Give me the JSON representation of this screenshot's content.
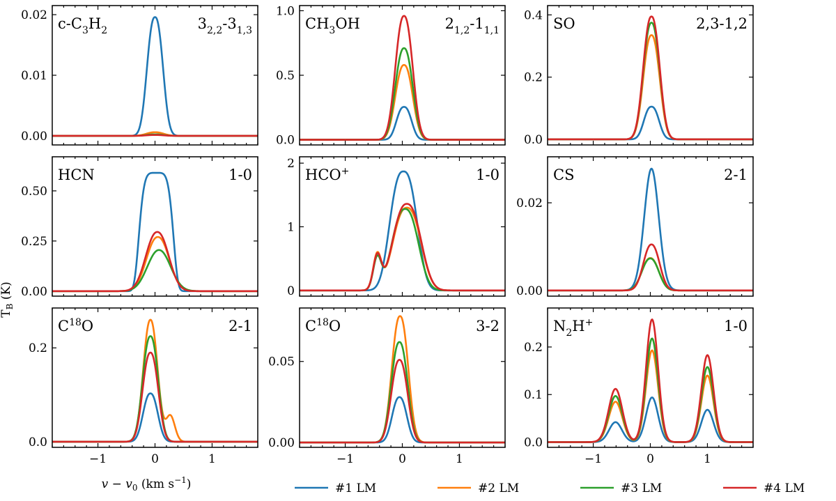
{
  "figure": {
    "ylabel": "T",
    "ylabel_sub": "B",
    "ylabel_unit": " (K)",
    "xlabel_var": "v − v",
    "xlabel_sub": "0",
    "xlabel_unit": " (km s",
    "xlabel_exp": "−1",
    "xlabel_close": ")"
  },
  "legend": [
    {
      "label": "#1 LM",
      "color": "#1f77b4"
    },
    {
      "label": "#2 LM",
      "color": "#ff7f0e"
    },
    {
      "label": "#3 LM",
      "color": "#2ca02c"
    },
    {
      "label": "#4 LM",
      "color": "#d62728"
    }
  ],
  "chart_data": [
    {
      "type": "line",
      "molecule": [
        {
          "t": "c-C"
        },
        {
          "t": "3",
          "s": "sub"
        },
        {
          "t": "H"
        },
        {
          "t": "2",
          "s": "sub"
        }
      ],
      "transition": [
        {
          "t": "3"
        },
        {
          "t": "2,2",
          "s": "sub"
        },
        {
          "t": "-3"
        },
        {
          "t": "1,3",
          "s": "sub"
        }
      ],
      "xlim": [
        -1.8,
        1.8
      ],
      "ylim": [
        -0.0015,
        0.0215
      ],
      "xticks": [
        -1,
        0,
        1
      ],
      "xtick_labels": [
        "−1",
        "0",
        "1"
      ],
      "yticks": [
        0,
        0.01,
        0.02
      ],
      "ytick_labels": [
        "0.00",
        "0.01",
        "0.02"
      ],
      "series": [
        {
          "name": "#1 LM",
          "components": [
            {
              "a": 0.0196,
              "mu": 0.0,
              "sigma": 0.18,
              "p": 2.4
            }
          ]
        },
        {
          "name": "#2 LM",
          "components": [
            {
              "a": 0.0006,
              "mu": 0.0,
              "sigma": 0.2,
              "p": 2.2
            }
          ]
        },
        {
          "name": "#3 LM",
          "components": [
            {
              "a": 0.00025,
              "mu": 0.0,
              "sigma": 0.2,
              "p": 2.2
            }
          ]
        },
        {
          "name": "#4 LM",
          "components": [
            {
              "a": 0.00015,
              "mu": 0.0,
              "sigma": 0.2,
              "p": 2.2
            }
          ]
        }
      ]
    },
    {
      "type": "line",
      "molecule": [
        {
          "t": "CH"
        },
        {
          "t": "3",
          "s": "sub"
        },
        {
          "t": "OH"
        }
      ],
      "transition": [
        {
          "t": "2"
        },
        {
          "t": "1,2",
          "s": "sub"
        },
        {
          "t": "-1"
        },
        {
          "t": "1,1",
          "s": "sub"
        }
      ],
      "xlim": [
        -1.8,
        1.8
      ],
      "ylim": [
        -0.04,
        1.04
      ],
      "xticks": [
        -1,
        0,
        1
      ],
      "xtick_labels": [
        "−1",
        "0",
        "1"
      ],
      "yticks": [
        0,
        0.5,
        1.0
      ],
      "ytick_labels": [
        "0.0",
        "0.5",
        "1.0"
      ],
      "series": [
        {
          "name": "#1 LM",
          "components": [
            {
              "a": 0.255,
              "mu": 0.03,
              "sigma": 0.17,
              "p": 2.4
            }
          ]
        },
        {
          "name": "#2 LM",
          "components": [
            {
              "a": 0.58,
              "mu": 0.03,
              "sigma": 0.2,
              "p": 2.3
            }
          ]
        },
        {
          "name": "#3 LM",
          "components": [
            {
              "a": 0.71,
              "mu": 0.03,
              "sigma": 0.2,
              "p": 2.3
            }
          ]
        },
        {
          "name": "#4 LM",
          "components": [
            {
              "a": 0.96,
              "mu": 0.03,
              "sigma": 0.2,
              "p": 2.3
            }
          ]
        }
      ]
    },
    {
      "type": "line",
      "molecule": [
        {
          "t": "SO"
        }
      ],
      "transition": [
        {
          "t": "2,3-1,2"
        }
      ],
      "xlim": [
        -1.8,
        1.8
      ],
      "ylim": [
        -0.018,
        0.43
      ],
      "xticks": [
        -1,
        0,
        1
      ],
      "xtick_labels": [
        "−1",
        "0",
        "1"
      ],
      "yticks": [
        0,
        0.2,
        0.4
      ],
      "ytick_labels": [
        "0.0",
        "0.2",
        "0.4"
      ],
      "series": [
        {
          "name": "#1 LM",
          "components": [
            {
              "a": 0.105,
              "mu": 0.02,
              "sigma": 0.17,
              "p": 2.4
            }
          ]
        },
        {
          "name": "#2 LM",
          "components": [
            {
              "a": 0.335,
              "mu": 0.02,
              "sigma": 0.19,
              "p": 2.3
            }
          ]
        },
        {
          "name": "#3 LM",
          "components": [
            {
              "a": 0.375,
              "mu": 0.02,
              "sigma": 0.19,
              "p": 2.3
            }
          ]
        },
        {
          "name": "#4 LM",
          "components": [
            {
              "a": 0.395,
              "mu": 0.02,
              "sigma": 0.19,
              "p": 2.3
            }
          ]
        }
      ]
    },
    {
      "type": "line",
      "molecule": [
        {
          "t": "HCN"
        }
      ],
      "transition": [
        {
          "t": "1-0"
        }
      ],
      "xlim": [
        -1.8,
        1.8
      ],
      "ylim": [
        -0.025,
        0.67
      ],
      "xticks": [
        -1,
        0,
        1
      ],
      "xtick_labels": [
        "−1",
        "0",
        "1"
      ],
      "yticks": [
        0,
        0.25,
        0.5
      ],
      "ytick_labels": [
        "0.00",
        "0.25",
        "0.50"
      ],
      "series": [
        {
          "name": "#1 LM",
          "components": [
            {
              "a": 0.59,
              "mu": 0.02,
              "sigma": 0.32,
              "p": 5.0
            }
          ]
        },
        {
          "name": "#2 LM",
          "components": [
            {
              "a": 0.27,
              "mu": 0.05,
              "sigma": 0.27,
              "p": 2.2
            }
          ]
        },
        {
          "name": "#3 LM",
          "components": [
            {
              "a": 0.205,
              "mu": 0.07,
              "sigma": 0.28,
              "p": 2.1
            }
          ]
        },
        {
          "name": "#4 LM",
          "components": [
            {
              "a": 0.295,
              "mu": 0.04,
              "sigma": 0.27,
              "p": 2.2
            }
          ]
        }
      ]
    },
    {
      "type": "line",
      "molecule": [
        {
          "t": "HCO"
        },
        {
          "t": "+",
          "s": "sup"
        }
      ],
      "transition": [
        {
          "t": "1-0"
        }
      ],
      "xlim": [
        -1.8,
        1.8
      ],
      "ylim": [
        -0.09,
        2.1
      ],
      "xticks": [
        -1,
        0,
        1
      ],
      "xtick_labels": [
        "−1",
        "0",
        "1"
      ],
      "yticks": [
        0,
        1,
        2
      ],
      "ytick_labels": [
        "0",
        "1",
        "2"
      ],
      "series": [
        {
          "name": "#1 LM",
          "components": [
            {
              "a": 1.87,
              "mu": 0.02,
              "sigma": 0.3,
              "p": 2.6
            }
          ]
        },
        {
          "name": "#2 LM",
          "components": [
            {
              "a": 0.55,
              "mu": -0.44,
              "sigma": 0.1,
              "p": 2.0
            },
            {
              "a": 1.3,
              "mu": 0.08,
              "sigma": 0.32,
              "p": 2.4
            }
          ]
        },
        {
          "name": "#3 LM",
          "components": [
            {
              "a": 0.5,
              "mu": -0.44,
              "sigma": 0.1,
              "p": 2.0
            },
            {
              "a": 1.28,
              "mu": 0.05,
              "sigma": 0.3,
              "p": 2.4
            }
          ]
        },
        {
          "name": "#4 LM",
          "components": [
            {
              "a": 0.53,
              "mu": -0.44,
              "sigma": 0.1,
              "p": 2.0
            },
            {
              "a": 1.36,
              "mu": 0.08,
              "sigma": 0.32,
              "p": 2.4
            }
          ]
        }
      ]
    },
    {
      "type": "line",
      "molecule": [
        {
          "t": "CS"
        }
      ],
      "transition": [
        {
          "t": "2-1"
        }
      ],
      "xlim": [
        -1.8,
        1.8
      ],
      "ylim": [
        -0.0013,
        0.0305
      ],
      "xticks": [
        -1,
        0,
        1
      ],
      "xtick_labels": [
        "−1",
        "0",
        "1"
      ],
      "yticks": [
        0,
        0.02
      ],
      "ytick_labels": [
        "0.00",
        "0.02"
      ],
      "series": [
        {
          "name": "#1 LM",
          "components": [
            {
              "a": 0.0278,
              "mu": 0.02,
              "sigma": 0.18,
              "p": 2.0
            }
          ]
        },
        {
          "name": "#2 LM",
          "components": [
            {
              "a": 0.0074,
              "mu": 0.0,
              "sigma": 0.2,
              "p": 2.2
            }
          ]
        },
        {
          "name": "#3 LM",
          "components": [
            {
              "a": 0.0073,
              "mu": 0.0,
              "sigma": 0.2,
              "p": 2.2
            }
          ]
        },
        {
          "name": "#4 LM",
          "components": [
            {
              "a": 0.0105,
              "mu": 0.02,
              "sigma": 0.19,
              "p": 2.2
            }
          ]
        }
      ]
    },
    {
      "type": "line",
      "molecule": [
        {
          "t": "C"
        },
        {
          "t": "18",
          "s": "sup"
        },
        {
          "t": "O"
        }
      ],
      "transition": [
        {
          "t": "2-1"
        }
      ],
      "xlim": [
        -1.8,
        1.8
      ],
      "ylim": [
        -0.012,
        0.285
      ],
      "xticks": [
        -1,
        0,
        1
      ],
      "xtick_labels": [
        "−1",
        "0",
        "1"
      ],
      "yticks": [
        0,
        0.2
      ],
      "ytick_labels": [
        "0.0",
        "0.2"
      ],
      "series": [
        {
          "name": "#1 LM",
          "components": [
            {
              "a": 0.103,
              "mu": -0.08,
              "sigma": 0.17,
              "p": 2.3
            }
          ]
        },
        {
          "name": "#2 LM",
          "components": [
            {
              "a": 0.26,
              "mu": -0.08,
              "sigma": 0.17,
              "p": 2.2
            },
            {
              "a": 0.055,
              "mu": 0.27,
              "sigma": 0.11,
              "p": 2.0
            }
          ]
        },
        {
          "name": "#3 LM",
          "components": [
            {
              "a": 0.225,
              "mu": -0.08,
              "sigma": 0.18,
              "p": 2.3
            }
          ]
        },
        {
          "name": "#4 LM",
          "components": [
            {
              "a": 0.19,
              "mu": -0.08,
              "sigma": 0.18,
              "p": 2.3
            }
          ]
        }
      ]
    },
    {
      "type": "line",
      "molecule": [
        {
          "t": "C"
        },
        {
          "t": "18",
          "s": "sup"
        },
        {
          "t": "O"
        }
      ],
      "transition": [
        {
          "t": "3-2"
        }
      ],
      "xlim": [
        -1.8,
        1.8
      ],
      "ylim": [
        -0.003,
        0.083
      ],
      "xticks": [
        -1,
        0,
        1
      ],
      "xtick_labels": [
        "−1",
        "0",
        "1"
      ],
      "yticks": [
        0,
        0.05
      ],
      "ytick_labels": [
        "0.00",
        "0.05"
      ],
      "series": [
        {
          "name": "#1 LM",
          "components": [
            {
              "a": 0.028,
              "mu": -0.05,
              "sigma": 0.17,
              "p": 2.3
            }
          ]
        },
        {
          "name": "#2 LM",
          "components": [
            {
              "a": 0.078,
              "mu": -0.04,
              "sigma": 0.19,
              "p": 2.3
            }
          ]
        },
        {
          "name": "#3 LM",
          "components": [
            {
              "a": 0.062,
              "mu": -0.05,
              "sigma": 0.19,
              "p": 2.3
            }
          ]
        },
        {
          "name": "#4 LM",
          "components": [
            {
              "a": 0.051,
              "mu": -0.05,
              "sigma": 0.19,
              "p": 2.3
            }
          ]
        }
      ]
    },
    {
      "type": "line",
      "molecule": [
        {
          "t": "N"
        },
        {
          "t": "2",
          "s": "sub"
        },
        {
          "t": "H"
        },
        {
          "t": "+",
          "s": "sup"
        }
      ],
      "transition": [
        {
          "t": "1-0"
        }
      ],
      "xlim": [
        -1.8,
        1.8
      ],
      "ylim": [
        -0.011,
        0.282
      ],
      "xticks": [
        -1,
        0,
        1
      ],
      "xtick_labels": [
        "−1",
        "0",
        "1"
      ],
      "yticks": [
        0,
        0.1,
        0.2
      ],
      "ytick_labels": [
        "0.0",
        "0.1",
        "0.2"
      ],
      "series": [
        {
          "name": "#1 LM",
          "components": [
            {
              "a": 0.042,
              "mu": -0.61,
              "sigma": 0.16,
              "p": 2.0
            },
            {
              "a": 0.094,
              "mu": 0.03,
              "sigma": 0.15,
              "p": 2.0
            },
            {
              "a": 0.068,
              "mu": 1.0,
              "sigma": 0.15,
              "p": 2.0
            }
          ]
        },
        {
          "name": "#2 LM",
          "components": [
            {
              "a": 0.085,
              "mu": -0.61,
              "sigma": 0.17,
              "p": 2.0
            },
            {
              "a": 0.193,
              "mu": 0.03,
              "sigma": 0.15,
              "p": 2.0
            },
            {
              "a": 0.14,
              "mu": 1.0,
              "sigma": 0.15,
              "p": 2.0
            }
          ]
        },
        {
          "name": "#3 LM",
          "components": [
            {
              "a": 0.097,
              "mu": -0.61,
              "sigma": 0.17,
              "p": 2.0
            },
            {
              "a": 0.218,
              "mu": 0.03,
              "sigma": 0.15,
              "p": 2.0
            },
            {
              "a": 0.158,
              "mu": 1.0,
              "sigma": 0.15,
              "p": 2.0
            }
          ]
        },
        {
          "name": "#4 LM",
          "components": [
            {
              "a": 0.112,
              "mu": -0.61,
              "sigma": 0.17,
              "p": 2.0
            },
            {
              "a": 0.258,
              "mu": 0.03,
              "sigma": 0.15,
              "p": 2.0
            },
            {
              "a": 0.183,
              "mu": 1.0,
              "sigma": 0.15,
              "p": 2.0
            }
          ]
        }
      ]
    }
  ]
}
